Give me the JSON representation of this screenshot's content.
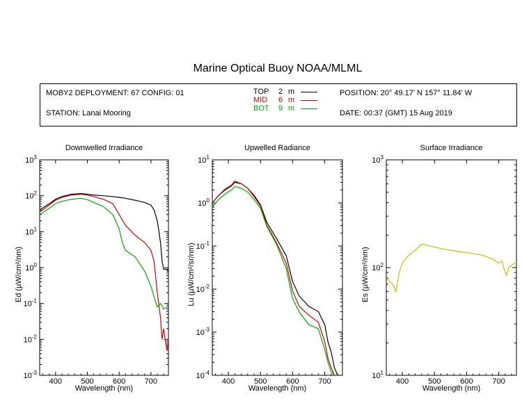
{
  "title": "Marine Optical Buoy NOAA/MLML",
  "info": {
    "deployment": "MOBY2 DEPLOYMENT: 67 CONFIG: 01",
    "station": "STATION: Lanai Mooring",
    "position": "POSITION: 20° 49.17' N   157° 11.84' W",
    "date": "DATE: 00:37 (GMT) 15 Aug 2019",
    "legend": [
      {
        "label": "TOP",
        "depth": "2",
        "unit": "m",
        "color": "#000000"
      },
      {
        "label": "MID",
        "depth": "6",
        "unit": "m",
        "color": "#cc0000"
      },
      {
        "label": "BOT",
        "depth": "9",
        "unit": "m",
        "color": "#00aa00"
      }
    ]
  },
  "colors": {
    "top": "#000000",
    "mid": "#cc0000",
    "bot": "#00aa00",
    "surface": "#c8c000"
  },
  "chart_data": [
    {
      "type": "line",
      "title": "Downwelled Irradiance",
      "xlabel": "Wavelength (nm)",
      "ylabel_main": "Ed",
      "ylabel_unit": "(µW/cm²/nm)",
      "log_y": true,
      "xlim": [
        350,
        755
      ],
      "ylim": [
        0.001,
        1000
      ],
      "x_ticks": [
        400,
        500,
        600,
        700
      ],
      "y_ticks": [
        {
          "base": "10",
          "exp": "3"
        },
        {
          "base": "10",
          "exp": "2"
        },
        {
          "base": "10",
          "exp": "1"
        },
        {
          "base": "10",
          "exp": "0"
        },
        {
          "base": "10",
          "exp": "-1"
        },
        {
          "base": "10",
          "exp": "-2"
        },
        {
          "base": "10",
          "exp": "-3"
        }
      ],
      "series": [
        {
          "color": "#000000",
          "x": [
            350,
            380,
            400,
            420,
            450,
            480,
            500,
            520,
            550,
            580,
            600,
            620,
            650,
            680,
            700,
            710,
            720,
            730,
            735,
            740,
            750,
            755
          ],
          "y": [
            40,
            60,
            80,
            95,
            110,
            115,
            110,
            105,
            100,
            95,
            90,
            85,
            75,
            65,
            55,
            40,
            20,
            5,
            1.5,
            0.9,
            0.9,
            0.8
          ]
        },
        {
          "color": "#cc0000",
          "x": [
            350,
            380,
            400,
            420,
            450,
            480,
            500,
            520,
            550,
            580,
            600,
            620,
            650,
            680,
            700,
            710,
            720,
            730,
            735,
            740,
            750,
            755
          ],
          "y": [
            35,
            55,
            75,
            90,
            105,
            110,
            105,
            95,
            80,
            60,
            30,
            15,
            8,
            5,
            3,
            1.5,
            0.2,
            0.04,
            0.01,
            0.02,
            0.005,
            0.008
          ]
        },
        {
          "color": "#00aa00",
          "x": [
            350,
            380,
            400,
            420,
            450,
            480,
            500,
            520,
            550,
            580,
            600,
            610,
            620,
            650,
            680,
            700,
            710,
            720,
            730,
            740,
            750,
            755
          ],
          "y": [
            30,
            45,
            60,
            70,
            80,
            85,
            78,
            65,
            50,
            30,
            12,
            5,
            3,
            2,
            0.8,
            0.3,
            0.15,
            0.08,
            0.1,
            0.07,
            0.08,
            0.08
          ]
        }
      ]
    },
    {
      "type": "line",
      "title": "Upwelled Radiance",
      "xlabel": "Wavelength (nm)",
      "ylabel_main": "Lu",
      "ylabel_unit": "(µW/cm²/sr/nm)",
      "log_y": true,
      "xlim": [
        350,
        755
      ],
      "ylim": [
        0.0001,
        10
      ],
      "x_ticks": [
        400,
        500,
        600,
        700
      ],
      "y_ticks": [
        {
          "base": "10",
          "exp": "1"
        },
        {
          "base": "10",
          "exp": "0"
        },
        {
          "base": "10",
          "exp": "-1"
        },
        {
          "base": "10",
          "exp": "-2"
        },
        {
          "base": "10",
          "exp": "-3"
        },
        {
          "base": "10",
          "exp": "-4"
        }
      ],
      "series": [
        {
          "color": "#000000",
          "x": [
            350,
            370,
            390,
            410,
            420,
            440,
            460,
            480,
            500,
            520,
            550,
            580,
            600,
            620,
            650,
            680,
            700,
            710,
            720,
            730,
            740,
            745
          ],
          "y": [
            1.0,
            1.5,
            2.0,
            2.5,
            3.0,
            2.8,
            2.2,
            1.5,
            0.9,
            0.35,
            0.15,
            0.06,
            0.015,
            0.007,
            0.004,
            0.003,
            0.0015,
            0.0006,
            0.00035,
            0.00015,
            0.0001,
            0.0001
          ]
        },
        {
          "color": "#cc0000",
          "x": [
            350,
            370,
            390,
            410,
            420,
            440,
            460,
            480,
            500,
            520,
            550,
            580,
            600,
            620,
            650,
            680,
            700,
            710,
            720,
            730,
            740
          ],
          "y": [
            1.0,
            1.5,
            2.1,
            2.6,
            3.2,
            2.8,
            2.2,
            1.4,
            0.85,
            0.3,
            0.12,
            0.04,
            0.009,
            0.004,
            0.0025,
            0.0017,
            0.0006,
            0.00025,
            0.00015,
            0.0001,
            0.0001
          ]
        },
        {
          "color": "#00aa00",
          "x": [
            350,
            370,
            390,
            410,
            420,
            440,
            460,
            480,
            500,
            520,
            550,
            580,
            600,
            620,
            650,
            680,
            700,
            710,
            720,
            730,
            740
          ],
          "y": [
            0.8,
            1.2,
            1.6,
            2.0,
            2.4,
            2.2,
            1.8,
            1.2,
            0.75,
            0.28,
            0.11,
            0.03,
            0.006,
            0.003,
            0.0015,
            0.0012,
            0.0004,
            0.0002,
            0.00012,
            0.0001,
            0.0001
          ]
        }
      ]
    },
    {
      "type": "line",
      "title": "Surface Irradiance",
      "xlabel": "Wavelength (nm)",
      "ylabel_main": "Es",
      "ylabel_unit": "(µW/cm²/nm)",
      "log_y": true,
      "xlim": [
        350,
        755
      ],
      "ylim": [
        10,
        1000
      ],
      "x_ticks": [
        400,
        500,
        600,
        700
      ],
      "y_ticks": [
        {
          "base": "10",
          "exp": "3"
        },
        {
          "base": "10",
          "exp": "2"
        },
        {
          "base": "10",
          "exp": "1"
        }
      ],
      "series": [
        {
          "color": "#c8c000",
          "x": [
            350,
            360,
            370,
            380,
            390,
            400,
            420,
            440,
            460,
            480,
            500,
            520,
            550,
            580,
            600,
            620,
            650,
            680,
            700,
            710,
            720,
            725,
            730,
            740,
            750,
            755
          ],
          "y": [
            80,
            75,
            70,
            60,
            90,
            110,
            130,
            145,
            165,
            160,
            155,
            150,
            145,
            140,
            138,
            135,
            130,
            120,
            110,
            115,
            90,
            85,
            100,
            105,
            110,
            110
          ]
        }
      ]
    }
  ]
}
